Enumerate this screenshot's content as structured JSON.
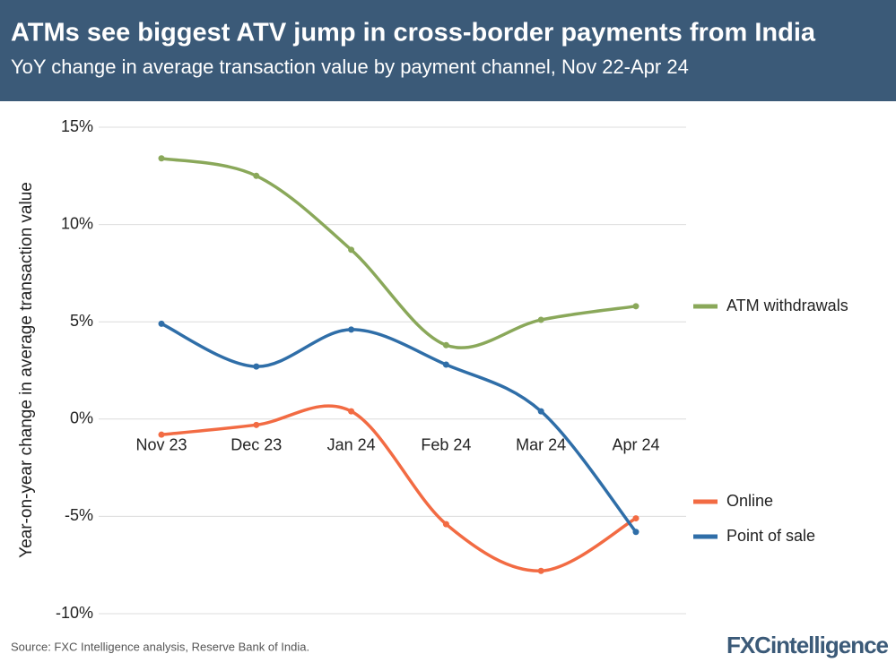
{
  "chart_data": {
    "type": "line",
    "title": "ATMs see biggest ATV jump in cross-border payments from India",
    "subtitle": "YoY change in average transaction value by payment channel, Nov 22-Apr 24",
    "y_label": "Year-on-year change in average transaction value",
    "source": "Source: FXC Intelligence analysis, Reserve Bank of India.",
    "logo": "FXCintelligence",
    "categories": [
      "Nov 23",
      "Dec 23",
      "Jan 24",
      "Feb 24",
      "Mar 24",
      "Apr 24"
    ],
    "series": [
      {
        "name": "ATM withdrawals",
        "color": "#8aa85a",
        "values": [
          13.4,
          12.5,
          8.7,
          3.8,
          5.1,
          5.8
        ]
      },
      {
        "name": "Online",
        "color": "#f26b43",
        "values": [
          -0.8,
          -0.3,
          0.4,
          -5.4,
          -7.8,
          -5.1
        ]
      },
      {
        "name": "Point of sale",
        "color": "#2f6ea8",
        "values": [
          4.9,
          2.7,
          4.6,
          2.8,
          0.4,
          -5.8
        ]
      }
    ],
    "ylim": [
      -10,
      15
    ],
    "yticks": [
      {
        "value": -10,
        "label": "-10%"
      },
      {
        "value": -5,
        "label": "-5%"
      },
      {
        "value": 0,
        "label": "0%"
      },
      {
        "value": 5,
        "label": "5%"
      },
      {
        "value": 10,
        "label": "10%"
      },
      {
        "value": 15,
        "label": "15%"
      }
    ],
    "grid": true
  }
}
